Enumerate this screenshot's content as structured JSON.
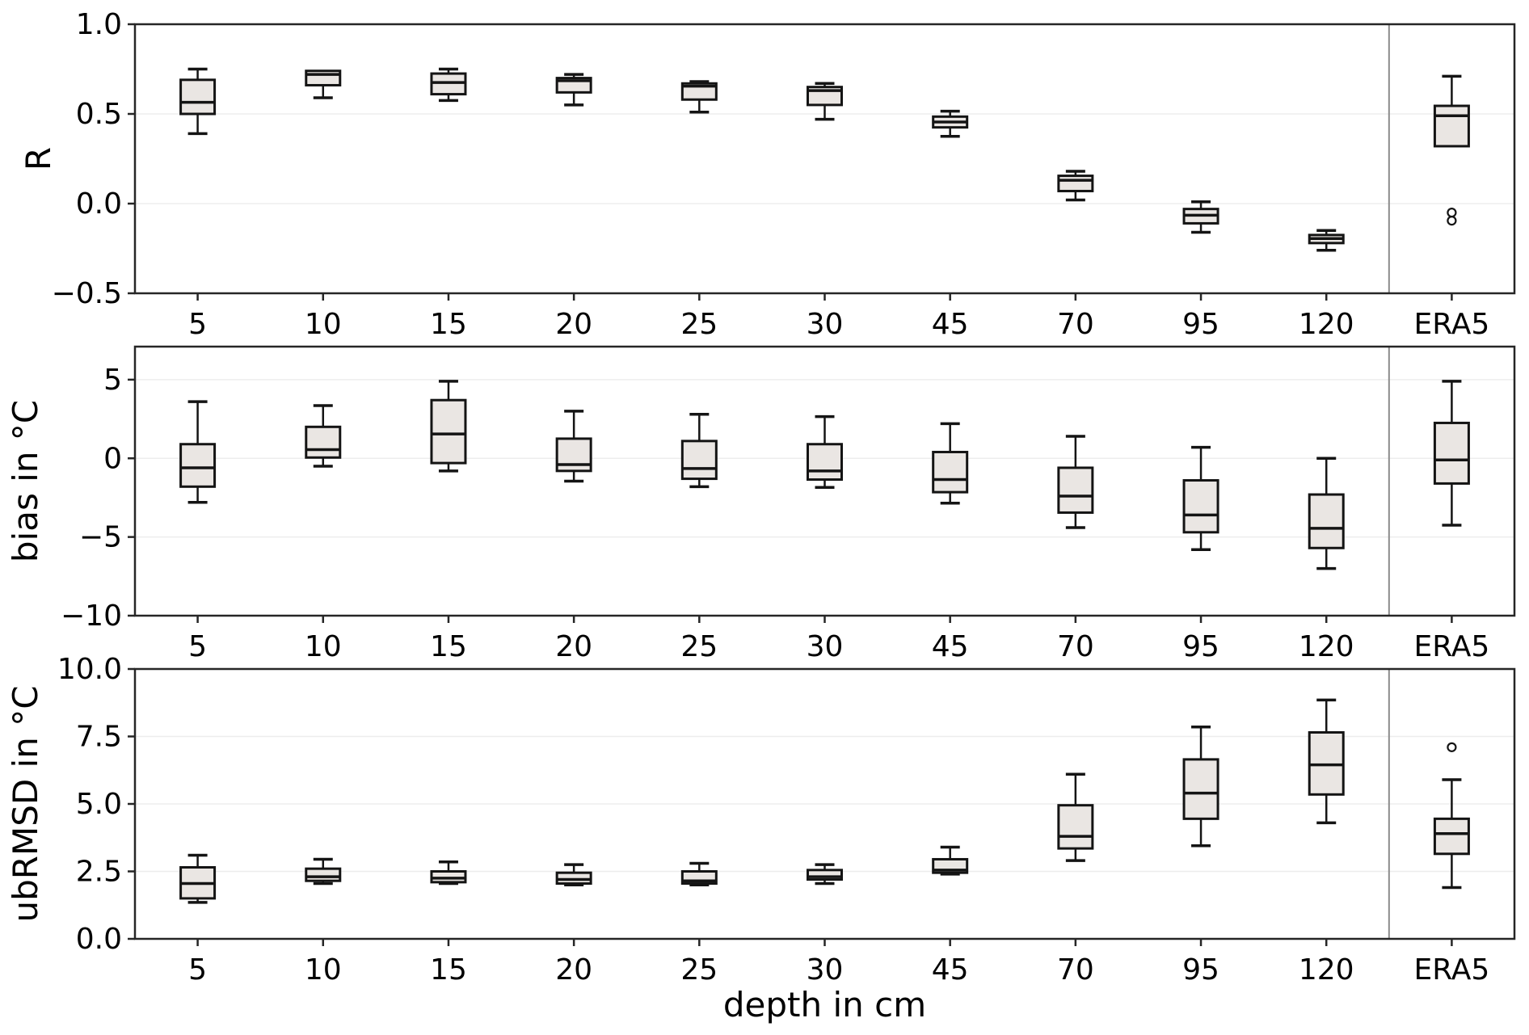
{
  "figure": {
    "xlabel": "depth in cm",
    "categories": [
      "5",
      "10",
      "15",
      "20",
      "25",
      "30",
      "45",
      "70",
      "95",
      "120",
      "ERA5"
    ],
    "separator_between": [
      "120",
      "ERA5"
    ],
    "colors": {
      "background": "#ffffff",
      "box_fill": "#eae6e3",
      "box_edge": "#141414",
      "median": "#141414",
      "whisker": "#141414",
      "gridline": "#ededed",
      "spine": "#262626",
      "separator": "#8c8c8c",
      "tick_label": "#000000"
    }
  },
  "chart_data": [
    {
      "type": "boxplot",
      "ylabel": "R",
      "ylim": [
        -0.5,
        1.0
      ],
      "grid": "horizontal",
      "legend": "none",
      "yticks": [
        {
          "v": 1.0,
          "label": "1.0"
        },
        {
          "v": 0.5,
          "label": "0.5"
        },
        {
          "v": 0.0,
          "label": "0.0"
        },
        {
          "v": -0.5,
          "label": "−0.5"
        }
      ],
      "gridlines": [
        0.5,
        0.0
      ],
      "boxes": [
        {
          "category": "5",
          "whislo": 0.39,
          "q1": 0.5,
          "med": 0.565,
          "q3": 0.69,
          "whishi": 0.75,
          "outliers": []
        },
        {
          "category": "10",
          "whislo": 0.59,
          "q1": 0.66,
          "med": 0.72,
          "q3": 0.74,
          "whishi": 0.74,
          "outliers": []
        },
        {
          "category": "15",
          "whislo": 0.575,
          "q1": 0.61,
          "med": 0.675,
          "q3": 0.725,
          "whishi": 0.75,
          "outliers": []
        },
        {
          "category": "20",
          "whislo": 0.55,
          "q1": 0.62,
          "med": 0.685,
          "q3": 0.7,
          "whishi": 0.72,
          "outliers": []
        },
        {
          "category": "25",
          "whislo": 0.51,
          "q1": 0.58,
          "med": 0.655,
          "q3": 0.67,
          "whishi": 0.68,
          "outliers": []
        },
        {
          "category": "30",
          "whislo": 0.47,
          "q1": 0.55,
          "med": 0.63,
          "q3": 0.65,
          "whishi": 0.67,
          "outliers": []
        },
        {
          "category": "45",
          "whislo": 0.375,
          "q1": 0.425,
          "med": 0.455,
          "q3": 0.485,
          "whishi": 0.515,
          "outliers": []
        },
        {
          "category": "70",
          "whislo": 0.02,
          "q1": 0.07,
          "med": 0.13,
          "q3": 0.155,
          "whishi": 0.18,
          "outliers": []
        },
        {
          "category": "95",
          "whislo": -0.16,
          "q1": -0.11,
          "med": -0.065,
          "q3": -0.03,
          "whishi": 0.01,
          "outliers": []
        },
        {
          "category": "120",
          "whislo": -0.26,
          "q1": -0.22,
          "med": -0.195,
          "q3": -0.175,
          "whishi": -0.15,
          "outliers": []
        },
        {
          "category": "ERA5",
          "whislo": 0.32,
          "q1": 0.32,
          "med": 0.49,
          "q3": 0.545,
          "whishi": 0.71,
          "outliers": [
            -0.05,
            -0.095
          ]
        }
      ]
    },
    {
      "type": "boxplot",
      "ylabel": "bias in °C",
      "ylim": [
        -10,
        7.1
      ],
      "grid": "horizontal",
      "legend": "none",
      "yticks": [
        {
          "v": 5,
          "label": "5"
        },
        {
          "v": 0,
          "label": "0"
        },
        {
          "v": -5,
          "label": "−5"
        },
        {
          "v": -10,
          "label": "−10"
        }
      ],
      "gridlines": [
        5,
        0,
        -5
      ],
      "boxes": [
        {
          "category": "5",
          "whislo": -2.8,
          "q1": -1.8,
          "med": -0.6,
          "q3": 0.9,
          "whishi": 3.6,
          "outliers": []
        },
        {
          "category": "10",
          "whislo": -0.5,
          "q1": 0.05,
          "med": 0.55,
          "q3": 2.0,
          "whishi": 3.35,
          "outliers": []
        },
        {
          "category": "15",
          "whislo": -0.8,
          "q1": -0.3,
          "med": 1.55,
          "q3": 3.7,
          "whishi": 4.9,
          "outliers": []
        },
        {
          "category": "20",
          "whislo": -1.45,
          "q1": -0.8,
          "med": -0.4,
          "q3": 1.25,
          "whishi": 3.0,
          "outliers": []
        },
        {
          "category": "25",
          "whislo": -1.8,
          "q1": -1.3,
          "med": -0.65,
          "q3": 1.1,
          "whishi": 2.8,
          "outliers": []
        },
        {
          "category": "30",
          "whislo": -1.85,
          "q1": -1.35,
          "med": -0.8,
          "q3": 0.9,
          "whishi": 2.65,
          "outliers": []
        },
        {
          "category": "45",
          "whislo": -2.85,
          "q1": -2.15,
          "med": -1.35,
          "q3": 0.4,
          "whishi": 2.2,
          "outliers": []
        },
        {
          "category": "70",
          "whislo": -4.4,
          "q1": -3.45,
          "med": -2.4,
          "q3": -0.6,
          "whishi": 1.4,
          "outliers": []
        },
        {
          "category": "95",
          "whislo": -5.8,
          "q1": -4.7,
          "med": -3.6,
          "q3": -1.4,
          "whishi": 0.7,
          "outliers": []
        },
        {
          "category": "120",
          "whislo": -7.0,
          "q1": -5.7,
          "med": -4.45,
          "q3": -2.3,
          "whishi": 0.0,
          "outliers": []
        },
        {
          "category": "ERA5",
          "whislo": -4.25,
          "q1": -1.6,
          "med": -0.1,
          "q3": 2.25,
          "whishi": 4.9,
          "outliers": []
        }
      ]
    },
    {
      "type": "boxplot",
      "ylabel": "ubRMSD in °C",
      "ylim": [
        0,
        10
      ],
      "grid": "horizontal",
      "legend": "none",
      "yticks": [
        {
          "v": 10,
          "label": "10.0"
        },
        {
          "v": 7.5,
          "label": "7.5"
        },
        {
          "v": 5,
          "label": "5.0"
        },
        {
          "v": 2.5,
          "label": "2.5"
        },
        {
          "v": 0,
          "label": "0.0"
        }
      ],
      "gridlines": [
        7.5,
        5,
        2.5
      ],
      "boxes": [
        {
          "category": "5",
          "whislo": 1.35,
          "q1": 1.5,
          "med": 2.05,
          "q3": 2.65,
          "whishi": 3.1,
          "outliers": []
        },
        {
          "category": "10",
          "whislo": 2.05,
          "q1": 2.15,
          "med": 2.3,
          "q3": 2.6,
          "whishi": 2.95,
          "outliers": []
        },
        {
          "category": "15",
          "whislo": 2.05,
          "q1": 2.1,
          "med": 2.25,
          "q3": 2.5,
          "whishi": 2.85,
          "outliers": []
        },
        {
          "category": "20",
          "whislo": 2.0,
          "q1": 2.05,
          "med": 2.2,
          "q3": 2.45,
          "whishi": 2.75,
          "outliers": []
        },
        {
          "category": "25",
          "whislo": 2.0,
          "q1": 2.05,
          "med": 2.15,
          "q3": 2.5,
          "whishi": 2.8,
          "outliers": []
        },
        {
          "category": "30",
          "whislo": 2.05,
          "q1": 2.2,
          "med": 2.3,
          "q3": 2.55,
          "whishi": 2.75,
          "outliers": []
        },
        {
          "category": "45",
          "whislo": 2.4,
          "q1": 2.45,
          "med": 2.55,
          "q3": 2.95,
          "whishi": 3.4,
          "outliers": []
        },
        {
          "category": "70",
          "whislo": 2.9,
          "q1": 3.35,
          "med": 3.8,
          "q3": 4.95,
          "whishi": 6.1,
          "outliers": []
        },
        {
          "category": "95",
          "whislo": 3.45,
          "q1": 4.45,
          "med": 5.4,
          "q3": 6.65,
          "whishi": 7.85,
          "outliers": []
        },
        {
          "category": "120",
          "whislo": 4.3,
          "q1": 5.35,
          "med": 6.45,
          "q3": 7.65,
          "whishi": 8.85,
          "outliers": []
        },
        {
          "category": "ERA5",
          "whislo": 1.9,
          "q1": 3.15,
          "med": 3.9,
          "q3": 4.45,
          "whishi": 5.9,
          "outliers": [
            7.1
          ]
        }
      ]
    }
  ]
}
